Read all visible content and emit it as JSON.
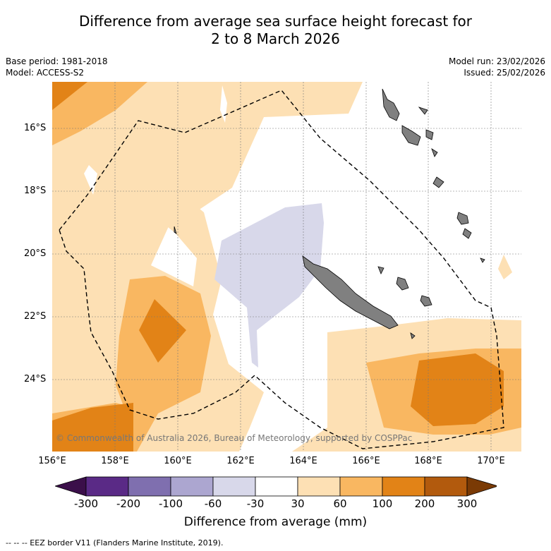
{
  "title_line1": "Difference from average sea surface height forecast for",
  "title_line2": "2 to 8 March 2026",
  "base_period": "Base period: 1981-2018",
  "model": "Model: ACCESS-S2",
  "model_run": "Model run: 23/02/2026",
  "issued": "Issued: 25/02/2026",
  "lat_labels": [
    "16°S",
    "18°S",
    "20°S",
    "22°S",
    "24°S"
  ],
  "lon_labels": [
    "156°E",
    "158°E",
    "160°E",
    "162°E",
    "164°E",
    "166°E",
    "168°E",
    "170°E"
  ],
  "colorbar": {
    "title": "Difference from average (mm)",
    "ticks": [
      "-300",
      "-200",
      "-100",
      "-60",
      "-30",
      "30",
      "60",
      "100",
      "200",
      "300"
    ],
    "colors": [
      "#3b0f4a",
      "#5a2a86",
      "#7f6faf",
      "#aca6d0",
      "#d8d8ea",
      "#ffffff",
      "#fde0b4",
      "#f9b761",
      "#e28317",
      "#b25a0d",
      "#7a3a05"
    ]
  },
  "copyright": "© Commonwealth of Australia 2026, Bureau of Meteorology, supported by COSPPac",
  "footer": "-- -- -- EEZ border V11 (Flanders Marine Institute, 2019)."
}
